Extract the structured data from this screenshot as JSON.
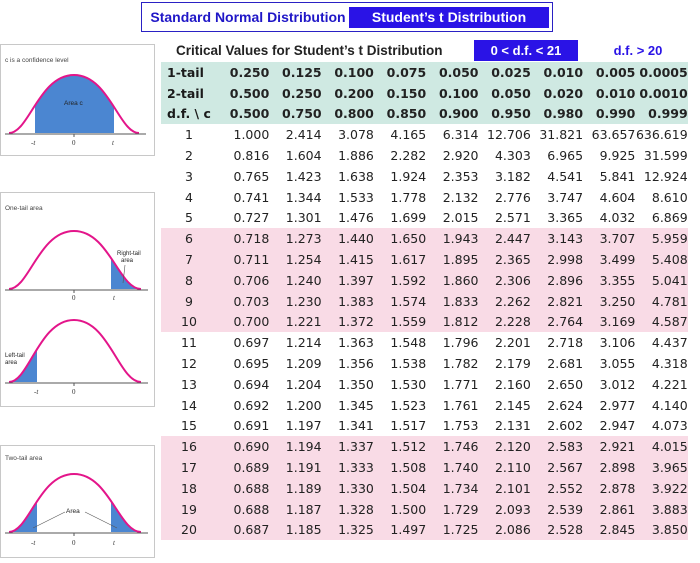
{
  "tabs": {
    "normal": "Standard Normal Distribution",
    "student": "Student’s t Distribution"
  },
  "table_title": "Critical Values for Student’s t Distribution",
  "df_filters": {
    "small": "0 < d.f. < 21",
    "large": "d.f. > 20"
  },
  "panels": {
    "confidence": {
      "caption": "c is a confidence level",
      "area_label": "Area c",
      "axis": [
        "-t",
        "0",
        "t"
      ]
    },
    "one_tail": {
      "caption": "One-tail area",
      "right_label": [
        "Right-tail",
        "area"
      ],
      "left_label": [
        "Left-tail",
        "area"
      ],
      "axis_right": [
        "0",
        "t"
      ],
      "axis_left": [
        "-t",
        "0"
      ]
    },
    "two_tail": {
      "caption": "Two-tail area",
      "area_label": "Area",
      "axis": [
        "-t",
        "0",
        "t"
      ]
    }
  },
  "colors": {
    "tab_blue": "#2a13e6",
    "curve_magenta": "#e3158a",
    "shade_blue": "#4b86d1",
    "header_mint": "#cfe9e2",
    "row_pink": "#f9dbe6"
  },
  "header_rows": [
    {
      "label": "1-tail",
      "values": [
        "0.250",
        "0.125",
        "0.100",
        "0.075",
        "0.050",
        "0.025",
        "0.010",
        "0.005",
        "0.0005"
      ]
    },
    {
      "label": "2-tail",
      "values": [
        "0.500",
        "0.250",
        "0.200",
        "0.150",
        "0.100",
        "0.050",
        "0.020",
        "0.010",
        "0.0010"
      ]
    },
    {
      "label": "d.f. \\ c",
      "values": [
        "0.500",
        "0.750",
        "0.800",
        "0.850",
        "0.900",
        "0.950",
        "0.980",
        "0.990",
        "0.999"
      ]
    }
  ],
  "rows": [
    {
      "df": "1",
      "values": [
        "1.000",
        "2.414",
        "3.078",
        "4.165",
        "6.314",
        "12.706",
        "31.821",
        "63.657",
        "636.619"
      ]
    },
    {
      "df": "2",
      "values": [
        "0.816",
        "1.604",
        "1.886",
        "2.282",
        "2.920",
        "4.303",
        "6.965",
        "9.925",
        "31.599"
      ]
    },
    {
      "df": "3",
      "values": [
        "0.765",
        "1.423",
        "1.638",
        "1.924",
        "2.353",
        "3.182",
        "4.541",
        "5.841",
        "12.924"
      ]
    },
    {
      "df": "4",
      "values": [
        "0.741",
        "1.344",
        "1.533",
        "1.778",
        "2.132",
        "2.776",
        "3.747",
        "4.604",
        "8.610"
      ]
    },
    {
      "df": "5",
      "values": [
        "0.727",
        "1.301",
        "1.476",
        "1.699",
        "2.015",
        "2.571",
        "3.365",
        "4.032",
        "6.869"
      ]
    },
    {
      "df": "6",
      "values": [
        "0.718",
        "1.273",
        "1.440",
        "1.650",
        "1.943",
        "2.447",
        "3.143",
        "3.707",
        "5.959"
      ]
    },
    {
      "df": "7",
      "values": [
        "0.711",
        "1.254",
        "1.415",
        "1.617",
        "1.895",
        "2.365",
        "2.998",
        "3.499",
        "5.408"
      ]
    },
    {
      "df": "8",
      "values": [
        "0.706",
        "1.240",
        "1.397",
        "1.592",
        "1.860",
        "2.306",
        "2.896",
        "3.355",
        "5.041"
      ]
    },
    {
      "df": "9",
      "values": [
        "0.703",
        "1.230",
        "1.383",
        "1.574",
        "1.833",
        "2.262",
        "2.821",
        "3.250",
        "4.781"
      ]
    },
    {
      "df": "10",
      "values": [
        "0.700",
        "1.221",
        "1.372",
        "1.559",
        "1.812",
        "2.228",
        "2.764",
        "3.169",
        "4.587"
      ]
    },
    {
      "df": "11",
      "values": [
        "0.697",
        "1.214",
        "1.363",
        "1.548",
        "1.796",
        "2.201",
        "2.718",
        "3.106",
        "4.437"
      ]
    },
    {
      "df": "12",
      "values": [
        "0.695",
        "1.209",
        "1.356",
        "1.538",
        "1.782",
        "2.179",
        "2.681",
        "3.055",
        "4.318"
      ]
    },
    {
      "df": "13",
      "values": [
        "0.694",
        "1.204",
        "1.350",
        "1.530",
        "1.771",
        "2.160",
        "2.650",
        "3.012",
        "4.221"
      ]
    },
    {
      "df": "14",
      "values": [
        "0.692",
        "1.200",
        "1.345",
        "1.523",
        "1.761",
        "2.145",
        "2.624",
        "2.977",
        "4.140"
      ]
    },
    {
      "df": "15",
      "values": [
        "0.691",
        "1.197",
        "1.341",
        "1.517",
        "1.753",
        "2.131",
        "2.602",
        "2.947",
        "4.073"
      ]
    },
    {
      "df": "16",
      "values": [
        "0.690",
        "1.194",
        "1.337",
        "1.512",
        "1.746",
        "2.120",
        "2.583",
        "2.921",
        "4.015"
      ]
    },
    {
      "df": "17",
      "values": [
        "0.689",
        "1.191",
        "1.333",
        "1.508",
        "1.740",
        "2.110",
        "2.567",
        "2.898",
        "3.965"
      ]
    },
    {
      "df": "18",
      "values": [
        "0.688",
        "1.189",
        "1.330",
        "1.504",
        "1.734",
        "2.101",
        "2.552",
        "2.878",
        "3.922"
      ]
    },
    {
      "df": "19",
      "values": [
        "0.688",
        "1.187",
        "1.328",
        "1.500",
        "1.729",
        "2.093",
        "2.539",
        "2.861",
        "3.883"
      ]
    },
    {
      "df": "20",
      "values": [
        "0.687",
        "1.185",
        "1.325",
        "1.497",
        "1.725",
        "2.086",
        "2.528",
        "2.845",
        "3.850"
      ]
    }
  ]
}
